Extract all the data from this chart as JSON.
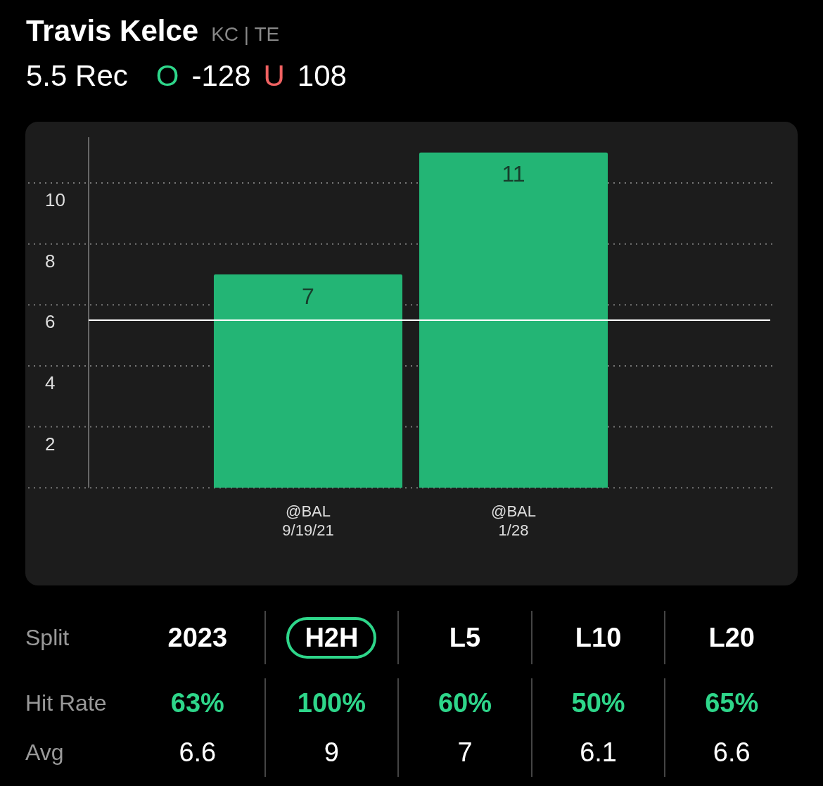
{
  "chart_data": {
    "type": "bar",
    "title": "Travis Kelce",
    "subtitle": "KC | TE",
    "categories": [
      "@BAL\n9/19/21",
      "@BAL\n1/28"
    ],
    "values": [
      7,
      11
    ],
    "color": "#23b575",
    "ylim": [
      0,
      11.5
    ],
    "yticks": [
      {
        "value": 0,
        "label": null
      },
      2,
      4,
      6,
      8,
      10
    ],
    "grid": "y",
    "data_labels": true,
    "ref_lines": [
      {
        "axis": "y",
        "value": 5.5,
        "color": "#ffffff"
      }
    ],
    "annotations": [
      "5.5 Rec",
      "O",
      "-128",
      "U",
      "108",
      "Split",
      "2023",
      "H2H",
      "L5",
      "L10",
      "L20",
      "Hit Rate",
      "63%",
      "100%",
      "60%",
      "50%",
      "65%",
      "Avg",
      "6.6",
      "9",
      "7",
      "6.1",
      "6.6"
    ]
  }
}
